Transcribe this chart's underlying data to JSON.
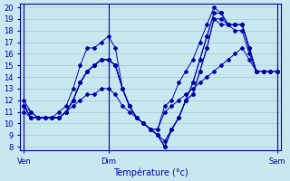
{
  "title": "",
  "xlabel": "Température (°c)",
  "ylabel": "",
  "bg_color": "#c8e8f0",
  "grid_color": "#a0c8d8",
  "line_color": "#0000aa",
  "ylim": [
    8,
    20
  ],
  "yticks": [
    8,
    9,
    10,
    11,
    12,
    13,
    14,
    15,
    16,
    17,
    18,
    19,
    20
  ],
  "day_labels": [
    "Ven",
    "Dim",
    "Sam"
  ],
  "day_positions": [
    0,
    12,
    36
  ],
  "series": [
    [
      11.5,
      11.0,
      10.5,
      10.5,
      10.5,
      11.0,
      11.5,
      13.0,
      15.0,
      16.5,
      16.5,
      17.0,
      17.5,
      16.5,
      13.0,
      11.5,
      10.5,
      10.0,
      9.5,
      9.5,
      11.5,
      12.0,
      13.5,
      14.5,
      15.5,
      17.0,
      18.5,
      20.0,
      19.5,
      18.5,
      18.0,
      18.0,
      16.0,
      14.5,
      14.5,
      14.5,
      14.5
    ],
    [
      11.0,
      10.5,
      10.5,
      10.5,
      10.5,
      10.5,
      11.0,
      11.5,
      12.0,
      12.5,
      12.5,
      13.0,
      13.0,
      12.5,
      11.5,
      11.0,
      10.5,
      10.0,
      9.5,
      9.5,
      11.0,
      11.5,
      12.0,
      12.5,
      13.0,
      13.5,
      14.0,
      14.5,
      15.0,
      15.5,
      16.0,
      16.5,
      15.5,
      14.5,
      14.5,
      14.5,
      14.5
    ],
    [
      11.5,
      10.5,
      10.5,
      10.5,
      10.5,
      10.5,
      11.0,
      12.0,
      13.5,
      14.5,
      15.0,
      15.5,
      15.5,
      15.0,
      13.0,
      11.5,
      10.5,
      10.0,
      9.5,
      9.0,
      8.0,
      9.5,
      10.5,
      12.0,
      13.5,
      15.5,
      17.5,
      19.5,
      19.5,
      18.5,
      18.5,
      18.5,
      16.5,
      14.5,
      14.5,
      14.5,
      14.5
    ],
    [
      11.5,
      10.5,
      10.5,
      10.5,
      10.5,
      10.5,
      11.0,
      12.0,
      13.5,
      14.5,
      15.0,
      15.5,
      15.5,
      15.0,
      13.0,
      11.5,
      10.5,
      10.0,
      9.5,
      9.0,
      8.0,
      9.5,
      10.5,
      12.0,
      13.5,
      15.5,
      17.5,
      19.5,
      19.5,
      18.5,
      18.5,
      18.5,
      16.5,
      14.5,
      14.5,
      14.5,
      14.5
    ],
    [
      12.0,
      11.0,
      10.5,
      10.5,
      10.5,
      10.5,
      11.0,
      12.0,
      13.5,
      14.5,
      15.0,
      15.5,
      15.5,
      15.0,
      13.0,
      11.5,
      10.5,
      10.0,
      9.5,
      9.0,
      8.5,
      9.5,
      10.5,
      12.0,
      12.5,
      14.5,
      16.5,
      19.0,
      19.0,
      18.5,
      18.5,
      18.5,
      16.5,
      14.5,
      14.5,
      14.5,
      14.5
    ],
    [
      11.5,
      10.5,
      10.5,
      10.5,
      10.5,
      10.5,
      11.0,
      12.0,
      13.5,
      14.5,
      15.0,
      15.5,
      15.5,
      15.0,
      13.0,
      11.5,
      10.5,
      10.0,
      9.5,
      9.0,
      8.0,
      9.5,
      10.5,
      12.0,
      12.5,
      14.5,
      16.5,
      19.0,
      18.5,
      18.5,
      18.5,
      18.5,
      16.5,
      14.5,
      14.5,
      14.5,
      14.5
    ]
  ]
}
